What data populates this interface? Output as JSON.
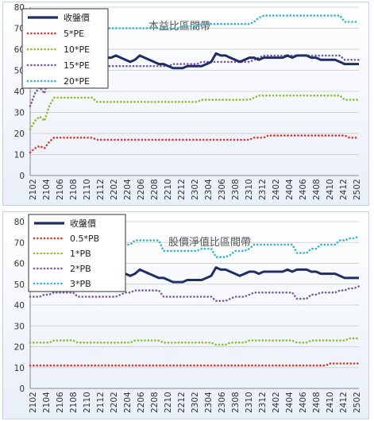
{
  "chart_data": [
    {
      "type": "line",
      "title": "",
      "annotation": "本益比區間帶",
      "xlabel": "",
      "ylabel": "",
      "ylim": [
        0,
        80
      ],
      "yticks": [
        0,
        10,
        20,
        30,
        40,
        50,
        60,
        70,
        80
      ],
      "xtick_labels": [
        "2102",
        "2104",
        "2106",
        "2108",
        "2110",
        "2112",
        "2202",
        "2204",
        "2206",
        "2208",
        "2210",
        "2212",
        "2302",
        "2304",
        "2306",
        "2308",
        "2310",
        "2312",
        "2402",
        "2404",
        "2406",
        "2408",
        "2410",
        "2412",
        "2502"
      ],
      "legend_position": "top-left",
      "grid": true,
      "series": [
        {
          "name": "收盤價",
          "color": "#1f2f66",
          "style": "solid",
          "values": [
            52,
            52,
            52,
            53,
            54,
            55,
            56,
            56,
            56,
            56,
            57,
            57,
            57,
            56,
            55,
            55,
            56,
            56,
            57,
            56,
            55,
            54,
            55,
            57,
            56,
            55,
            54,
            53,
            53,
            52,
            51,
            51,
            51,
            52,
            52,
            52,
            52,
            53,
            54,
            58,
            57,
            57,
            56,
            55,
            54,
            55,
            56,
            56,
            55,
            56,
            56,
            56,
            56,
            56,
            57,
            56,
            57,
            57,
            57,
            56,
            56,
            55,
            55,
            55,
            55,
            54,
            53,
            53,
            53,
            53
          ]
        },
        {
          "name": "5*PE",
          "color": "#d93b3b",
          "style": "dotted",
          "values": [
            11,
            13,
            14,
            13,
            16,
            18,
            18,
            18,
            18,
            18,
            18,
            18,
            18,
            18,
            17,
            17,
            17,
            17,
            17,
            17,
            17,
            17,
            17,
            17,
            17,
            17,
            17,
            17,
            17,
            17,
            17,
            17,
            17,
            17,
            17,
            17,
            17,
            17,
            17,
            17,
            17,
            17,
            17,
            17,
            17,
            17,
            17,
            18,
            18,
            18,
            19,
            19,
            19,
            19,
            19,
            19,
            19,
            19,
            19,
            19,
            19,
            19,
            19,
            19,
            19,
            19,
            19,
            18,
            18,
            18
          ]
        },
        {
          "name": "10*PE",
          "color": "#8fbf3a",
          "style": "dotted",
          "values": [
            22,
            26,
            28,
            26,
            33,
            37,
            37,
            37,
            37,
            37,
            37,
            37,
            37,
            37,
            35,
            35,
            35,
            35,
            35,
            35,
            35,
            35,
            35,
            35,
            35,
            35,
            35,
            35,
            35,
            35,
            35,
            35,
            35,
            35,
            35,
            35,
            36,
            36,
            36,
            36,
            36,
            36,
            36,
            36,
            36,
            36,
            36,
            37,
            38,
            38,
            38,
            38,
            38,
            38,
            38,
            38,
            38,
            38,
            38,
            38,
            38,
            38,
            38,
            38,
            38,
            38,
            36,
            36,
            36,
            36
          ]
        },
        {
          "name": "15*PE",
          "color": "#7a5ca8",
          "style": "dotted",
          "values": [
            33,
            39,
            42,
            39,
            49,
            55,
            55,
            55,
            55,
            55,
            55,
            55,
            55,
            55,
            52,
            52,
            52,
            52,
            52,
            52,
            52,
            52,
            52,
            52,
            52,
            52,
            52,
            52,
            52,
            52,
            53,
            53,
            53,
            53,
            53,
            53,
            54,
            54,
            54,
            54,
            54,
            54,
            54,
            54,
            54,
            54,
            54,
            55,
            56,
            57,
            57,
            57,
            57,
            57,
            57,
            57,
            57,
            57,
            57,
            57,
            57,
            57,
            57,
            57,
            57,
            57,
            55,
            55,
            55,
            55
          ]
        },
        {
          "name": "20*PE",
          "color": "#3bb3c9",
          "style": "dotted",
          "values": [
            45,
            52,
            55,
            53,
            65,
            73,
            73,
            73,
            72,
            71,
            70,
            70,
            70,
            70,
            70,
            70,
            70,
            70,
            70,
            70,
            70,
            70,
            70,
            70,
            70,
            70,
            70,
            70,
            70,
            70,
            70,
            70,
            71,
            71,
            71,
            71,
            72,
            72,
            72,
            72,
            72,
            72,
            72,
            72,
            72,
            72,
            72,
            73,
            75,
            76,
            76,
            76,
            76,
            76,
            76,
            76,
            76,
            76,
            76,
            76,
            76,
            76,
            76,
            76,
            76,
            76,
            73,
            73,
            73,
            73
          ]
        }
      ]
    },
    {
      "type": "line",
      "title": "",
      "annotation": "股價淨值比區間帶",
      "xlabel": "",
      "ylabel": "",
      "ylim": [
        0,
        80
      ],
      "yticks": [
        0,
        10,
        20,
        30,
        40,
        50,
        60,
        70,
        80
      ],
      "xtick_labels": [
        "2102",
        "2104",
        "2106",
        "2108",
        "2110",
        "2112",
        "2202",
        "2204",
        "2206",
        "2208",
        "2210",
        "2212",
        "2302",
        "2304",
        "2306",
        "2308",
        "2310",
        "2312",
        "2402",
        "2404",
        "2406",
        "2408",
        "2410",
        "2412",
        "2502"
      ],
      "legend_position": "top-left",
      "grid": true,
      "series": [
        {
          "name": "收盤價",
          "color": "#1f2f66",
          "style": "solid",
          "values": [
            52,
            52,
            52,
            53,
            54,
            55,
            56,
            56,
            56,
            56,
            57,
            57,
            57,
            56,
            55,
            55,
            56,
            56,
            57,
            56,
            55,
            54,
            55,
            57,
            56,
            55,
            54,
            53,
            53,
            52,
            51,
            51,
            51,
            52,
            52,
            52,
            52,
            53,
            54,
            58,
            57,
            57,
            56,
            55,
            54,
            55,
            56,
            56,
            55,
            56,
            56,
            56,
            56,
            56,
            57,
            56,
            57,
            57,
            57,
            56,
            56,
            55,
            55,
            55,
            55,
            54,
            53,
            53,
            53,
            53
          ]
        },
        {
          "name": "0.5*PB",
          "color": "#d93b3b",
          "style": "dotted",
          "values": [
            11,
            11,
            11,
            11,
            11,
            11,
            11,
            11,
            11,
            11,
            11,
            11,
            11,
            11,
            11,
            11,
            11,
            11,
            11,
            11,
            11,
            11,
            11,
            11,
            11,
            11,
            11,
            11,
            11,
            11,
            11,
            11,
            11,
            11,
            11,
            11,
            11,
            11,
            11,
            11,
            11,
            11,
            11,
            11,
            11,
            11,
            11,
            11,
            11,
            11,
            11,
            11,
            11,
            11,
            11,
            11,
            11,
            11,
            11,
            11,
            11,
            11,
            11,
            12,
            12,
            12,
            12,
            12,
            12,
            12
          ]
        },
        {
          "name": "1*PB",
          "color": "#8fbf3a",
          "style": "dotted",
          "values": [
            22,
            22,
            22,
            22,
            22,
            23,
            23,
            23,
            23,
            23,
            22,
            22,
            22,
            22,
            22,
            22,
            22,
            22,
            22,
            22,
            22,
            22,
            23,
            23,
            23,
            23,
            23,
            23,
            22,
            22,
            22,
            22,
            22,
            22,
            22,
            22,
            22,
            22,
            22,
            21,
            21,
            21,
            22,
            22,
            22,
            22,
            23,
            23,
            23,
            23,
            23,
            23,
            23,
            23,
            23,
            23,
            22,
            22,
            22,
            23,
            23,
            23,
            23,
            23,
            23,
            23,
            23,
            24,
            24,
            24
          ]
        },
        {
          "name": "2*PB",
          "color": "#7a5ca8",
          "style": "dotted",
          "values": [
            44,
            44,
            44,
            45,
            45,
            46,
            46,
            46,
            46,
            46,
            44,
            44,
            44,
            44,
            44,
            44,
            44,
            44,
            44,
            45,
            46,
            46,
            47,
            47,
            47,
            47,
            47,
            47,
            44,
            44,
            44,
            44,
            44,
            44,
            44,
            44,
            44,
            44,
            44,
            42,
            42,
            42,
            43,
            44,
            44,
            44,
            45,
            46,
            46,
            46,
            46,
            46,
            46,
            46,
            46,
            46,
            43,
            43,
            43,
            45,
            45,
            46,
            46,
            46,
            46,
            47,
            47,
            48,
            48,
            49
          ]
        },
        {
          "name": "3*PB",
          "color": "#3bb3c9",
          "style": "dotted",
          "values": [
            66,
            66,
            66,
            67,
            67,
            69,
            69,
            69,
            69,
            69,
            67,
            67,
            67,
            67,
            67,
            67,
            67,
            67,
            67,
            68,
            69,
            69,
            71,
            71,
            71,
            71,
            71,
            71,
            66,
            66,
            66,
            66,
            66,
            66,
            66,
            66,
            67,
            67,
            67,
            63,
            63,
            63,
            64,
            66,
            66,
            66,
            67,
            69,
            69,
            69,
            69,
            69,
            69,
            69,
            69,
            69,
            65,
            65,
            65,
            67,
            67,
            69,
            69,
            69,
            69,
            71,
            71,
            72,
            72,
            73
          ]
        }
      ]
    }
  ]
}
